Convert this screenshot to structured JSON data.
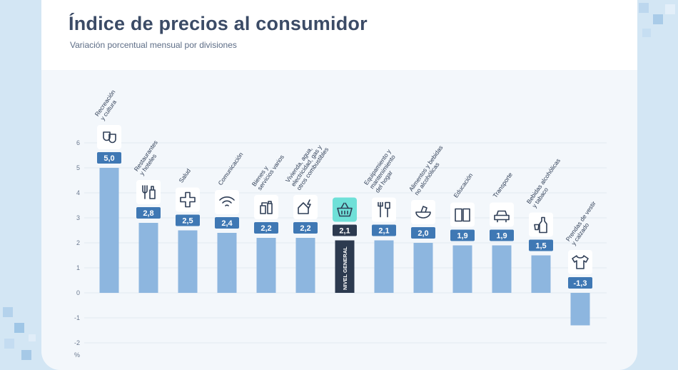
{
  "header": {
    "title": "Índice de precios al consumidor",
    "subtitle": "Variación porcentual mensual por divisiones"
  },
  "colors": {
    "bar": "#8db6df",
    "highlight_bar": "#2c3a4f",
    "label_box": "#3f78b4",
    "icon_box": "#ffffff",
    "highlight_icon_box": "#6fe0d8",
    "grid": "#d2dde8",
    "axis_text": "#6b7a90"
  },
  "chart_data": {
    "type": "bar",
    "ylim": [
      -2,
      6
    ],
    "yticks": [
      6,
      5,
      4,
      3,
      2,
      1,
      0,
      -1,
      -2
    ],
    "ytick_labels": [
      "6",
      "5",
      "4",
      "3",
      "2",
      "1",
      "0",
      "-1",
      "-2"
    ],
    "yunit": "%",
    "grid": true,
    "categories": [
      [
        "Recreación",
        "y cultura"
      ],
      [
        "Restaurantes",
        "y hoteles"
      ],
      [
        "Salud"
      ],
      [
        "Comunicación"
      ],
      [
        "Bienes y",
        "servicios varios"
      ],
      [
        "Vivienda, agua,",
        "electricidad, gas y",
        "otros combustibles"
      ],
      [
        "NIVEL GENERAL"
      ],
      [
        "Equipamiento y",
        "mantenimiento",
        "del hogar"
      ],
      [
        "Alimentos y bebidas",
        "no alcohólicas"
      ],
      [
        "Educación"
      ],
      [
        "Transporte"
      ],
      [
        "Bebidas alcohólicas",
        "y tabaco"
      ],
      [
        "Prendas de vestir",
        "y calzado"
      ]
    ],
    "values": [
      5.0,
      2.8,
      2.5,
      2.4,
      2.2,
      2.2,
      2.1,
      2.1,
      2.0,
      1.9,
      1.9,
      1.5,
      -1.3
    ],
    "value_labels": [
      "5,0",
      "2,8",
      "2,5",
      "2,4",
      "2,2",
      "2,2",
      "2,1",
      "2,1",
      "2,0",
      "1,9",
      "1,9",
      "1,5",
      "-1,3"
    ],
    "icons": [
      "theater-masks-icon",
      "fork-bottle-icon",
      "medical-cross-icon",
      "wifi-icon",
      "spray-bottles-icon",
      "house-bolt-icon",
      "shopping-basket-icon",
      "tools-icon",
      "food-bowl-icon",
      "book-icon",
      "car-icon",
      "bottle-glass-icon",
      "shirt-icon"
    ],
    "highlight_index": 6
  }
}
